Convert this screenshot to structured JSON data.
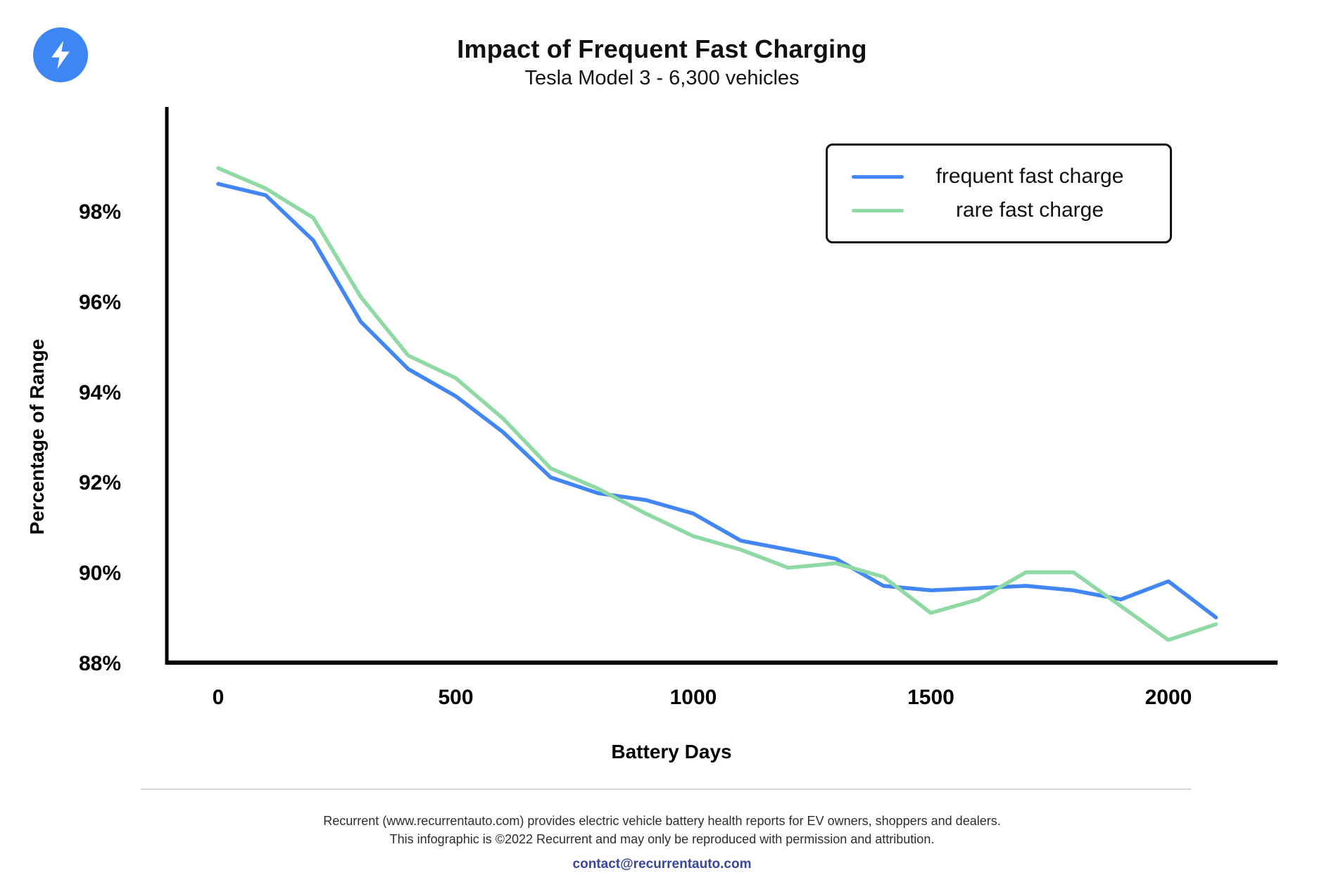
{
  "header": {
    "title": "Impact of Frequent Fast Charging",
    "subtitle": "Tesla Model 3 - 6,300 vehicles"
  },
  "logo": {
    "icon": "lightning-bolt-icon",
    "bg_color": "#3D86F4",
    "bolt_color": "#ffffff"
  },
  "chart_data": {
    "type": "line",
    "title": "Impact of Frequent Fast Charging",
    "subtitle": "Tesla Model 3 - 6,300 vehicles",
    "xlabel": "Battery Days",
    "ylabel": "Percentage of Range",
    "grid": false,
    "legend_position": "top-right",
    "x": [
      0,
      100,
      200,
      300,
      400,
      500,
      600,
      700,
      800,
      900,
      1000,
      1100,
      1200,
      1300,
      1400,
      1500,
      1600,
      1700,
      1800,
      1900,
      2000,
      2100
    ],
    "series": [
      {
        "name": "frequent fast charge",
        "color": "#4285F4",
        "values": [
          98.6,
          98.35,
          97.35,
          95.55,
          94.5,
          93.9,
          93.1,
          92.1,
          91.75,
          91.6,
          91.3,
          90.7,
          90.5,
          90.3,
          89.7,
          89.6,
          89.65,
          89.7,
          89.6,
          89.4,
          89.8,
          89.0
        ]
      },
      {
        "name": "rare fast charge",
        "color": "#8FD9A4",
        "values": [
          98.95,
          98.5,
          97.85,
          96.1,
          94.8,
          94.3,
          93.4,
          92.3,
          91.85,
          91.3,
          90.8,
          90.5,
          90.1,
          90.2,
          89.9,
          89.1,
          89.4,
          90.0,
          90.0,
          89.25,
          88.5,
          88.85
        ]
      }
    ],
    "x_ticks": [
      0,
      500,
      1000,
      1500,
      2000
    ],
    "y_ticks": [
      {
        "value": 98,
        "label": "98%"
      },
      {
        "value": 96,
        "label": "96%"
      },
      {
        "value": 94,
        "label": "94%"
      },
      {
        "value": 92,
        "label": "92%"
      },
      {
        "value": 90,
        "label": "90%"
      },
      {
        "value": 88,
        "label": "88%"
      }
    ],
    "xlim": [
      0,
      2230
    ],
    "ylim": [
      87.7,
      100.3
    ]
  },
  "footer": {
    "line1": "Recurrent (www.recurrentauto.com) provides electric vehicle battery health reports for EV owners, shoppers and dealers.",
    "line2": "This infographic is ©2022 Recurrent and may only be reproduced with permission and attribution.",
    "contact_email": "contact@recurrentauto.com",
    "email_color": "#3A4699"
  }
}
